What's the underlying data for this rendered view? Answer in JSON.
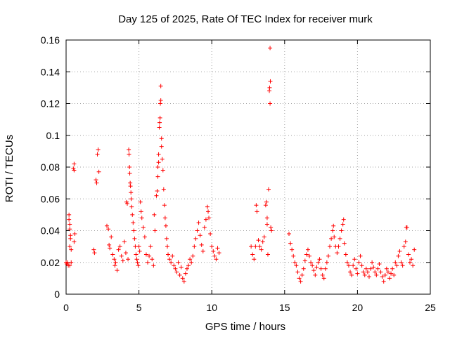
{
  "chart_data": {
    "type": "scatter",
    "title": "Day 125 of 2025, Rate Of TEC Index for receiver murk",
    "xlabel": "GPS time / hours",
    "ylabel": "ROTI / TECUs",
    "xlim": [
      0,
      25
    ],
    "ylim": [
      0,
      0.16
    ],
    "xticks": [
      "0",
      "5",
      "10",
      "15",
      "20",
      "25"
    ],
    "yticks": [
      "0",
      "0.02",
      "0.04",
      "0.06",
      "0.08",
      "0.1",
      "0.12",
      "0.14",
      "0.16"
    ],
    "grid": true,
    "marker": "plus",
    "color": "#ff0000",
    "series": [
      {
        "points": [
          [
            0.0,
            0.02
          ],
          [
            0.05,
            0.019
          ],
          [
            0.1,
            0.02
          ],
          [
            0.15,
            0.018
          ],
          [
            0.2,
            0.05
          ],
          [
            0.2,
            0.047
          ],
          [
            0.25,
            0.044
          ],
          [
            0.25,
            0.041
          ],
          [
            0.3,
            0.037
          ],
          [
            0.3,
            0.035
          ],
          [
            0.25,
            0.03
          ],
          [
            0.35,
            0.028
          ],
          [
            0.35,
            0.02
          ],
          [
            0.25,
            0.018
          ],
          [
            0.5,
            0.079
          ],
          [
            0.55,
            0.078
          ],
          [
            0.55,
            0.082
          ],
          [
            0.6,
            0.038
          ],
          [
            0.55,
            0.033
          ],
          [
            1.9,
            0.028
          ],
          [
            1.95,
            0.026
          ],
          [
            2.05,
            0.072
          ],
          [
            2.1,
            0.07
          ],
          [
            2.15,
            0.088
          ],
          [
            2.2,
            0.091
          ],
          [
            2.25,
            0.077
          ],
          [
            2.8,
            0.043
          ],
          [
            2.9,
            0.041
          ],
          [
            2.95,
            0.031
          ],
          [
            3.0,
            0.029
          ],
          [
            3.1,
            0.036
          ],
          [
            3.2,
            0.025
          ],
          [
            3.3,
            0.022
          ],
          [
            3.35,
            0.018
          ],
          [
            3.4,
            0.02
          ],
          [
            3.5,
            0.015
          ],
          [
            3.6,
            0.028
          ],
          [
            3.7,
            0.03
          ],
          [
            3.8,
            0.024
          ],
          [
            3.9,
            0.021
          ],
          [
            4.0,
            0.033
          ],
          [
            4.1,
            0.026
          ],
          [
            4.15,
            0.058
          ],
          [
            4.2,
            0.057
          ],
          [
            4.25,
            0.022
          ],
          [
            4.3,
            0.091
          ],
          [
            4.32,
            0.088
          ],
          [
            4.35,
            0.08
          ],
          [
            4.37,
            0.076
          ],
          [
            4.4,
            0.07
          ],
          [
            4.42,
            0.068
          ],
          [
            4.45,
            0.064
          ],
          [
            4.47,
            0.06
          ],
          [
            4.5,
            0.055
          ],
          [
            4.55,
            0.05
          ],
          [
            4.6,
            0.045
          ],
          [
            4.65,
            0.04
          ],
          [
            4.7,
            0.035
          ],
          [
            4.75,
            0.03
          ],
          [
            4.8,
            0.025
          ],
          [
            4.85,
            0.022
          ],
          [
            4.9,
            0.02
          ],
          [
            4.95,
            0.018
          ],
          [
            5.0,
            0.03
          ],
          [
            5.05,
            0.027
          ],
          [
            5.1,
            0.058
          ],
          [
            5.15,
            0.052
          ],
          [
            5.2,
            0.048
          ],
          [
            5.3,
            0.042
          ],
          [
            5.4,
            0.036
          ],
          [
            5.5,
            0.025
          ],
          [
            5.6,
            0.02
          ],
          [
            5.7,
            0.024
          ],
          [
            5.8,
            0.03
          ],
          [
            5.9,
            0.022
          ],
          [
            6.0,
            0.018
          ],
          [
            6.05,
            0.05
          ],
          [
            6.1,
            0.04
          ],
          [
            6.2,
            0.062
          ],
          [
            6.25,
            0.065
          ],
          [
            6.3,
            0.074
          ],
          [
            6.3,
            0.08
          ],
          [
            6.35,
            0.083
          ],
          [
            6.35,
            0.088
          ],
          [
            6.4,
            0.105
          ],
          [
            6.42,
            0.108
          ],
          [
            6.45,
            0.111
          ],
          [
            6.47,
            0.12
          ],
          [
            6.5,
            0.122
          ],
          [
            6.5,
            0.131
          ],
          [
            6.55,
            0.093
          ],
          [
            6.55,
            0.098
          ],
          [
            6.6,
            0.085
          ],
          [
            6.65,
            0.078
          ],
          [
            6.7,
            0.066
          ],
          [
            6.75,
            0.056
          ],
          [
            6.8,
            0.048
          ],
          [
            6.85,
            0.043
          ],
          [
            6.9,
            0.035
          ],
          [
            6.95,
            0.03
          ],
          [
            7.0,
            0.025
          ],
          [
            7.1,
            0.022
          ],
          [
            7.2,
            0.02
          ],
          [
            7.3,
            0.024
          ],
          [
            7.4,
            0.018
          ],
          [
            7.5,
            0.016
          ],
          [
            7.6,
            0.014
          ],
          [
            7.7,
            0.02
          ],
          [
            7.8,
            0.012
          ],
          [
            7.9,
            0.017
          ],
          [
            8.0,
            0.01
          ],
          [
            8.1,
            0.008
          ],
          [
            8.2,
            0.013
          ],
          [
            8.3,
            0.016
          ],
          [
            8.4,
            0.018
          ],
          [
            8.5,
            0.022
          ],
          [
            8.6,
            0.02
          ],
          [
            8.7,
            0.024
          ],
          [
            8.8,
            0.03
          ],
          [
            8.9,
            0.035
          ],
          [
            9.0,
            0.04
          ],
          [
            9.1,
            0.045
          ],
          [
            9.2,
            0.037
          ],
          [
            9.3,
            0.031
          ],
          [
            9.4,
            0.027
          ],
          [
            9.5,
            0.042
          ],
          [
            9.6,
            0.047
          ],
          [
            9.7,
            0.055
          ],
          [
            9.75,
            0.052
          ],
          [
            9.8,
            0.048
          ],
          [
            9.9,
            0.038
          ],
          [
            10.0,
            0.03
          ],
          [
            10.1,
            0.027
          ],
          [
            10.2,
            0.024
          ],
          [
            10.3,
            0.022
          ],
          [
            10.4,
            0.029
          ],
          [
            10.5,
            0.026
          ],
          [
            12.7,
            0.03
          ],
          [
            12.8,
            0.025
          ],
          [
            12.9,
            0.022
          ],
          [
            13.0,
            0.03
          ],
          [
            13.05,
            0.056
          ],
          [
            13.1,
            0.052
          ],
          [
            13.2,
            0.034
          ],
          [
            13.3,
            0.03
          ],
          [
            13.4,
            0.028
          ],
          [
            13.5,
            0.033
          ],
          [
            13.6,
            0.036
          ],
          [
            13.7,
            0.056
          ],
          [
            13.75,
            0.058
          ],
          [
            13.8,
            0.048
          ],
          [
            13.8,
            0.044
          ],
          [
            13.85,
            0.025
          ],
          [
            13.9,
            0.066
          ],
          [
            13.95,
            0.128
          ],
          [
            13.97,
            0.13
          ],
          [
            14.0,
            0.155
          ],
          [
            14.02,
            0.134
          ],
          [
            14.0,
            0.12
          ],
          [
            14.05,
            0.042
          ],
          [
            14.1,
            0.04
          ],
          [
            15.3,
            0.038
          ],
          [
            15.4,
            0.032
          ],
          [
            15.5,
            0.028
          ],
          [
            15.6,
            0.024
          ],
          [
            15.7,
            0.02
          ],
          [
            15.8,
            0.018
          ],
          [
            15.9,
            0.014
          ],
          [
            16.0,
            0.01
          ],
          [
            16.1,
            0.008
          ],
          [
            16.2,
            0.012
          ],
          [
            16.3,
            0.016
          ],
          [
            16.4,
            0.021
          ],
          [
            16.5,
            0.025
          ],
          [
            16.6,
            0.028
          ],
          [
            16.7,
            0.024
          ],
          [
            16.8,
            0.02
          ],
          [
            16.9,
            0.018
          ],
          [
            17.0,
            0.015
          ],
          [
            17.1,
            0.012
          ],
          [
            17.2,
            0.017
          ],
          [
            17.3,
            0.02
          ],
          [
            17.4,
            0.022
          ],
          [
            17.5,
            0.016
          ],
          [
            17.6,
            0.012
          ],
          [
            17.7,
            0.01
          ],
          [
            17.8,
            0.016
          ],
          [
            17.9,
            0.02
          ],
          [
            18.0,
            0.024
          ],
          [
            18.1,
            0.03
          ],
          [
            18.2,
            0.035
          ],
          [
            18.3,
            0.04
          ],
          [
            18.35,
            0.043
          ],
          [
            18.4,
            0.036
          ],
          [
            18.5,
            0.03
          ],
          [
            18.6,
            0.026
          ],
          [
            18.7,
            0.03
          ],
          [
            18.8,
            0.035
          ],
          [
            18.9,
            0.04
          ],
          [
            19.0,
            0.044
          ],
          [
            19.05,
            0.047
          ],
          [
            19.1,
            0.032
          ],
          [
            19.2,
            0.025
          ],
          [
            19.3,
            0.02
          ],
          [
            19.4,
            0.018
          ],
          [
            19.5,
            0.014
          ],
          [
            19.6,
            0.012
          ],
          [
            19.7,
            0.018
          ],
          [
            19.8,
            0.022
          ],
          [
            19.9,
            0.016
          ],
          [
            20.0,
            0.013
          ],
          [
            20.1,
            0.02
          ],
          [
            20.2,
            0.024
          ],
          [
            20.3,
            0.018
          ],
          [
            20.4,
            0.014
          ],
          [
            20.5,
            0.012
          ],
          [
            20.6,
            0.016
          ],
          [
            20.7,
            0.014
          ],
          [
            20.8,
            0.011
          ],
          [
            20.9,
            0.016
          ],
          [
            21.0,
            0.02
          ],
          [
            21.1,
            0.017
          ],
          [
            21.2,
            0.014
          ],
          [
            21.3,
            0.012
          ],
          [
            21.4,
            0.016
          ],
          [
            21.5,
            0.019
          ],
          [
            21.6,
            0.014
          ],
          [
            21.7,
            0.011
          ],
          [
            21.8,
            0.008
          ],
          [
            21.9,
            0.012
          ],
          [
            22.0,
            0.016
          ],
          [
            22.1,
            0.014
          ],
          [
            22.2,
            0.01
          ],
          [
            22.3,
            0.013
          ],
          [
            22.4,
            0.016
          ],
          [
            22.5,
            0.012
          ],
          [
            22.6,
            0.02
          ],
          [
            22.7,
            0.018
          ],
          [
            22.8,
            0.024
          ],
          [
            22.9,
            0.027
          ],
          [
            23.0,
            0.02
          ],
          [
            23.1,
            0.018
          ],
          [
            23.2,
            0.03
          ],
          [
            23.3,
            0.033
          ],
          [
            23.35,
            0.042
          ],
          [
            23.4,
            0.042
          ],
          [
            23.5,
            0.025
          ],
          [
            23.6,
            0.02
          ],
          [
            23.7,
            0.022
          ],
          [
            23.8,
            0.018
          ],
          [
            23.9,
            0.028
          ]
        ]
      }
    ]
  }
}
